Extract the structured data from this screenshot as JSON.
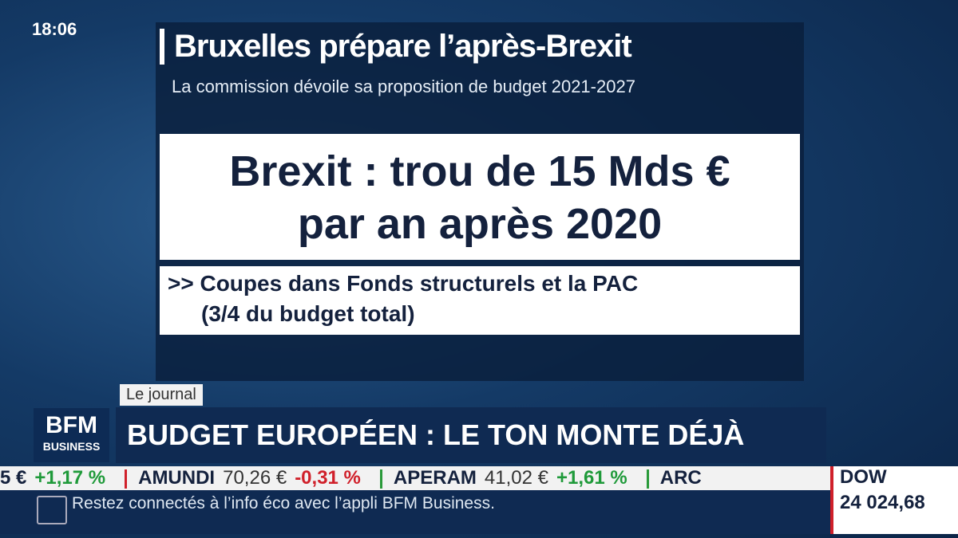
{
  "clock": "18:06",
  "panel": {
    "title": "Bruxelles prépare l’après-Brexit",
    "subtitle": "La commission dévoile sa proposition de budget 2021-2027",
    "headline": [
      "Brexit : trou de 15 Mds €",
      "par an après 2020"
    ],
    "bullet": [
      ">> Coupes dans Fonds structurels et la PAC",
      "(3/4 du budget total)"
    ]
  },
  "lower_third": {
    "label": "Le journal",
    "logo": [
      "BFM",
      "BUSINESS"
    ],
    "headline": "BUDGET EUROPÉEN : LE TON MONTE DÉJÀ"
  },
  "ticker": {
    "items": [
      {
        "price": "5 €",
        "change": "+1,17 %"
      },
      {
        "name": "AMUNDI",
        "price": "70,26 €",
        "change": "-0,31 %"
      },
      {
        "name": "APERAM",
        "price": "41,02 €",
        "change": "+1,61 %"
      },
      {
        "name": "ARC"
      }
    ],
    "index_name": "DOW",
    "index_value": "24 024,68",
    "message": "Restez connectés à l’info éco avec l’appli BFM Business."
  }
}
